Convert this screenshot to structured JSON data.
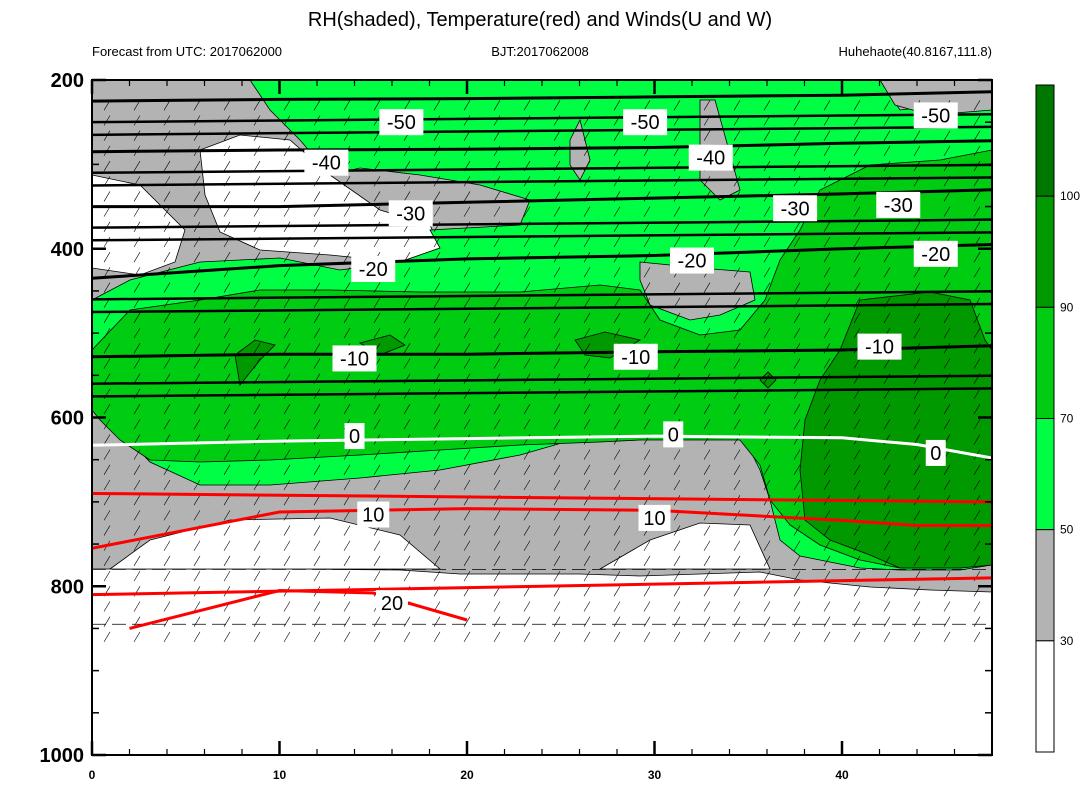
{
  "chart_data": {
    "type": "heatmap",
    "title": "RH(shaded), Temperature(red) and Winds(U and W)",
    "left_note": "Forecast from UTC: 2017062000",
    "center_note": "BJT:2017062008",
    "right_note": "Huhehaote(40.8167,111.8)",
    "x_ticks": [
      0,
      10,
      20,
      30,
      40
    ],
    "xlim": [
      0,
      48
    ],
    "y_ticks": [
      200,
      400,
      600,
      800,
      1000
    ],
    "ylim": [
      200,
      1000
    ],
    "y_scale": "linear-inverted",
    "colorbar": {
      "ticks": [
        30,
        50,
        70,
        90,
        100
      ],
      "colors": [
        "#ffffff",
        "#b3b3b3",
        "#00ff44",
        "#00cc11",
        "#009900",
        "#007700"
      ]
    },
    "temperature_isotherms": [
      {
        "value": -50,
        "color": "#000000",
        "points": [
          [
            0,
            225
          ],
          [
            10,
            223
          ],
          [
            20,
            222
          ],
          [
            30,
            220
          ],
          [
            40,
            218
          ],
          [
            48,
            214
          ]
        ]
      },
      {
        "value": -40,
        "color": "#000000",
        "points": [
          [
            0,
            285
          ],
          [
            10,
            283
          ],
          [
            20,
            282
          ],
          [
            30,
            280
          ],
          [
            40,
            275
          ],
          [
            48,
            272
          ]
        ]
      },
      {
        "value": -30,
        "color": "#000000",
        "points": [
          [
            0,
            350
          ],
          [
            10,
            350
          ],
          [
            20,
            345
          ],
          [
            30,
            340
          ],
          [
            40,
            335
          ],
          [
            48,
            330
          ]
        ]
      },
      {
        "value": -20,
        "color": "#000000",
        "points": [
          [
            0,
            435
          ],
          [
            10,
            420
          ],
          [
            20,
            412
          ],
          [
            30,
            408
          ],
          [
            40,
            400
          ],
          [
            48,
            395
          ]
        ]
      },
      {
        "value": -10,
        "color": "#000000",
        "points": [
          [
            0,
            528
          ],
          [
            10,
            525
          ],
          [
            20,
            525
          ],
          [
            30,
            522
          ],
          [
            40,
            520
          ],
          [
            48,
            515
          ]
        ]
      },
      {
        "value": 0,
        "color": "#ffffff",
        "points": [
          [
            0,
            633
          ],
          [
            10,
            628
          ],
          [
            20,
            625
          ],
          [
            30,
            622
          ],
          [
            40,
            624
          ],
          [
            44,
            632
          ],
          [
            48,
            648
          ]
        ]
      },
      {
        "value": 10,
        "color": "#ff0000",
        "points": [
          [
            0,
            755
          ],
          [
            10,
            712
          ],
          [
            20,
            708
          ],
          [
            30,
            710
          ],
          [
            40,
            722
          ],
          [
            44,
            728
          ],
          [
            48,
            728
          ]
        ]
      },
      {
        "value": 20,
        "color": "#ff0000",
        "points": [
          [
            2,
            850
          ],
          [
            10,
            805
          ],
          [
            15,
            808
          ],
          [
            20,
            840
          ]
        ]
      }
    ],
    "contour_labels": [
      {
        "text": "-50",
        "x": 16.5,
        "y": 250
      },
      {
        "text": "-50",
        "x": 29.5,
        "y": 250
      },
      {
        "text": "-50",
        "x": 45,
        "y": 242
      },
      {
        "text": "-40",
        "x": 12.5,
        "y": 298
      },
      {
        "text": "-40",
        "x": 33,
        "y": 292
      },
      {
        "text": "-30",
        "x": 17,
        "y": 358
      },
      {
        "text": "-30",
        "x": 37.5,
        "y": 352
      },
      {
        "text": "-30",
        "x": 43,
        "y": 348
      },
      {
        "text": "-20",
        "x": 15,
        "y": 424
      },
      {
        "text": "-20",
        "x": 32,
        "y": 414
      },
      {
        "text": "-20",
        "x": 45,
        "y": 406
      },
      {
        "text": "-10",
        "x": 14,
        "y": 530
      },
      {
        "text": "-10",
        "x": 29,
        "y": 528
      },
      {
        "text": "-10",
        "x": 42,
        "y": 516
      },
      {
        "text": "0",
        "x": 14,
        "y": 622
      },
      {
        "text": "0",
        "x": 31,
        "y": 620
      },
      {
        "text": "0",
        "x": 45,
        "y": 642
      },
      {
        "text": "10",
        "x": 15,
        "y": 715
      },
      {
        "text": "10",
        "x": 30,
        "y": 719
      },
      {
        "text": "20",
        "x": 16,
        "y": 820
      }
    ]
  }
}
